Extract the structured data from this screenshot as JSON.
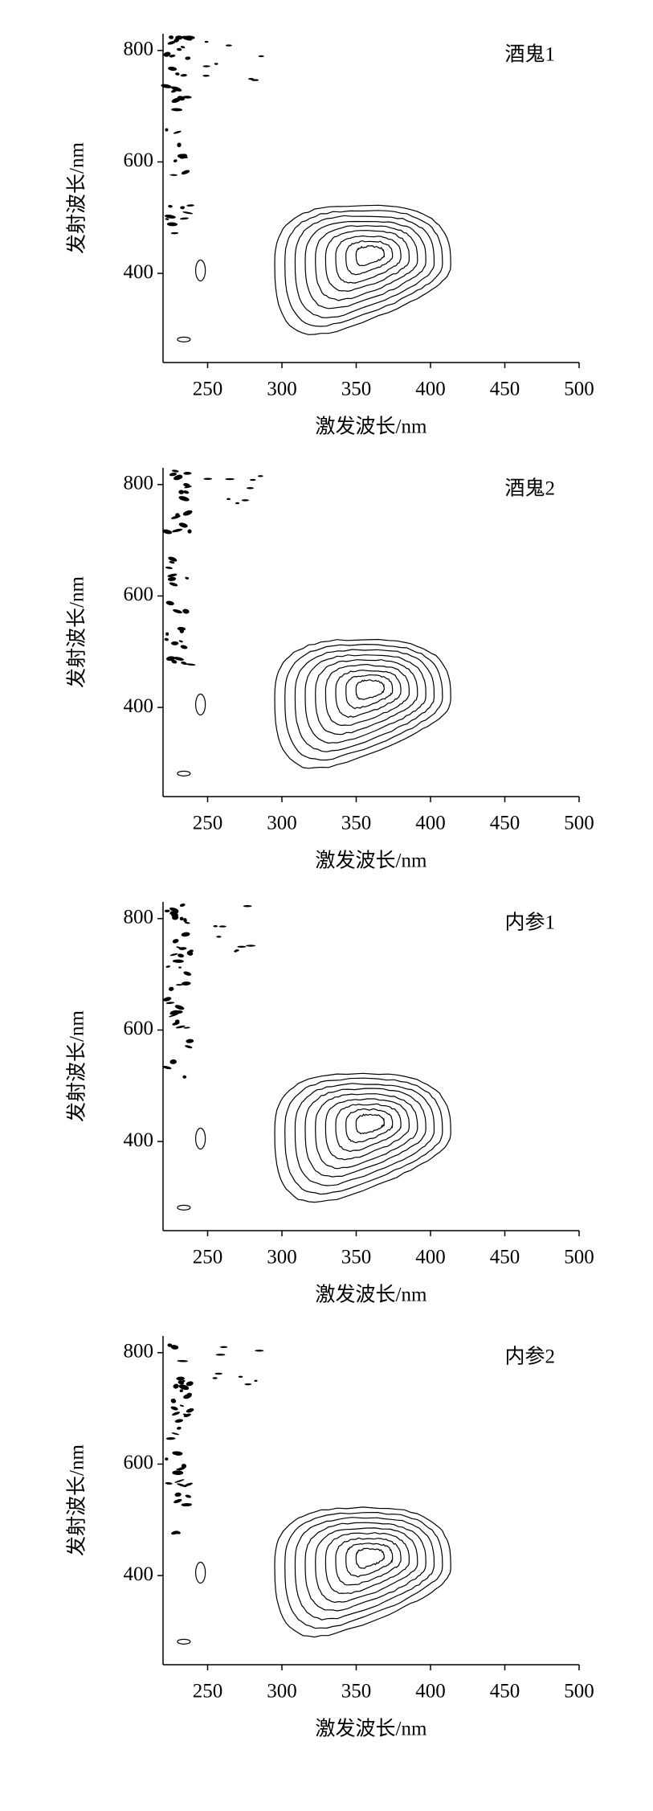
{
  "chart_data": [
    {
      "type": "contour",
      "title": "酒鬼1",
      "xlabel": "激发波长/nm",
      "ylabel": "发射波长/nm",
      "xlim": [
        220,
        500
      ],
      "ylim": [
        240,
        830
      ],
      "xticks": [
        250,
        300,
        350,
        400,
        450,
        500
      ],
      "yticks": [
        400,
        600,
        800
      ],
      "color": "#000000"
    },
    {
      "type": "contour",
      "title": "酒鬼2",
      "xlabel": "激发波长/nm",
      "ylabel": "发射波长/nm",
      "xlim": [
        220,
        500
      ],
      "ylim": [
        240,
        830
      ],
      "xticks": [
        250,
        300,
        350,
        400,
        450,
        500
      ],
      "yticks": [
        400,
        600,
        800
      ],
      "color": "#000000"
    },
    {
      "type": "contour",
      "title": "内参1",
      "xlabel": "激发波长/nm",
      "ylabel": "发射波长/nm",
      "xlim": [
        220,
        500
      ],
      "ylim": [
        240,
        830
      ],
      "xticks": [
        250,
        300,
        350,
        400,
        450,
        500
      ],
      "yticks": [
        400,
        600,
        800
      ],
      "color": "#000000"
    },
    {
      "type": "contour",
      "title": "内参2",
      "xlabel": "激发波长/nm",
      "ylabel": "发射波长/nm",
      "xlim": [
        220,
        500
      ],
      "ylim": [
        240,
        830
      ],
      "xticks": [
        250,
        300,
        350,
        400,
        450,
        500
      ],
      "yticks": [
        400,
        600,
        800
      ],
      "color": "#000000"
    }
  ]
}
